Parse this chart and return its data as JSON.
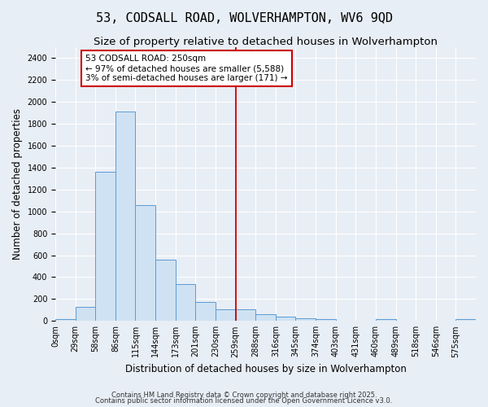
{
  "title": "53, CODSALL ROAD, WOLVERHAMPTON, WV6 9QD",
  "subtitle": "Size of property relative to detached houses in Wolverhampton",
  "xlabel": "Distribution of detached houses by size in Wolverhampton",
  "ylabel": "Number of detached properties",
  "bar_labels": [
    "0sqm",
    "29sqm",
    "58sqm",
    "86sqm",
    "115sqm",
    "144sqm",
    "173sqm",
    "201sqm",
    "230sqm",
    "259sqm",
    "288sqm",
    "316sqm",
    "345sqm",
    "374sqm",
    "403sqm",
    "431sqm",
    "460sqm",
    "489sqm",
    "518sqm",
    "546sqm",
    "575sqm"
  ],
  "bar_heights": [
    15,
    130,
    1360,
    1910,
    1055,
    560,
    335,
    170,
    110,
    110,
    65,
    40,
    25,
    20,
    0,
    0,
    15,
    0,
    0,
    0,
    15
  ],
  "bar_color": "#cfe2f3",
  "bar_edge_color": "#5b9bd5",
  "vline_pos": 9,
  "vline_color": "#cc0000",
  "annotation_text": "53 CODSALL ROAD: 250sqm\n← 97% of detached houses are smaller (5,588)\n3% of semi-detached houses are larger (171) →",
  "annotation_box_color": "white",
  "annotation_box_edge": "#cc0000",
  "ylim": [
    0,
    2500
  ],
  "yticks": [
    0,
    200,
    400,
    600,
    800,
    1000,
    1200,
    1400,
    1600,
    1800,
    2000,
    2200,
    2400
  ],
  "footer1": "Contains HM Land Registry data © Crown copyright and database right 2025.",
  "footer2": "Contains public sector information licensed under the Open Government Licence v3.0.",
  "background_color": "#e8eef5",
  "plot_background": "#e8eef5",
  "grid_color": "#ffffff",
  "title_fontsize": 11,
  "subtitle_fontsize": 9.5,
  "tick_fontsize": 7,
  "label_fontsize": 8.5
}
